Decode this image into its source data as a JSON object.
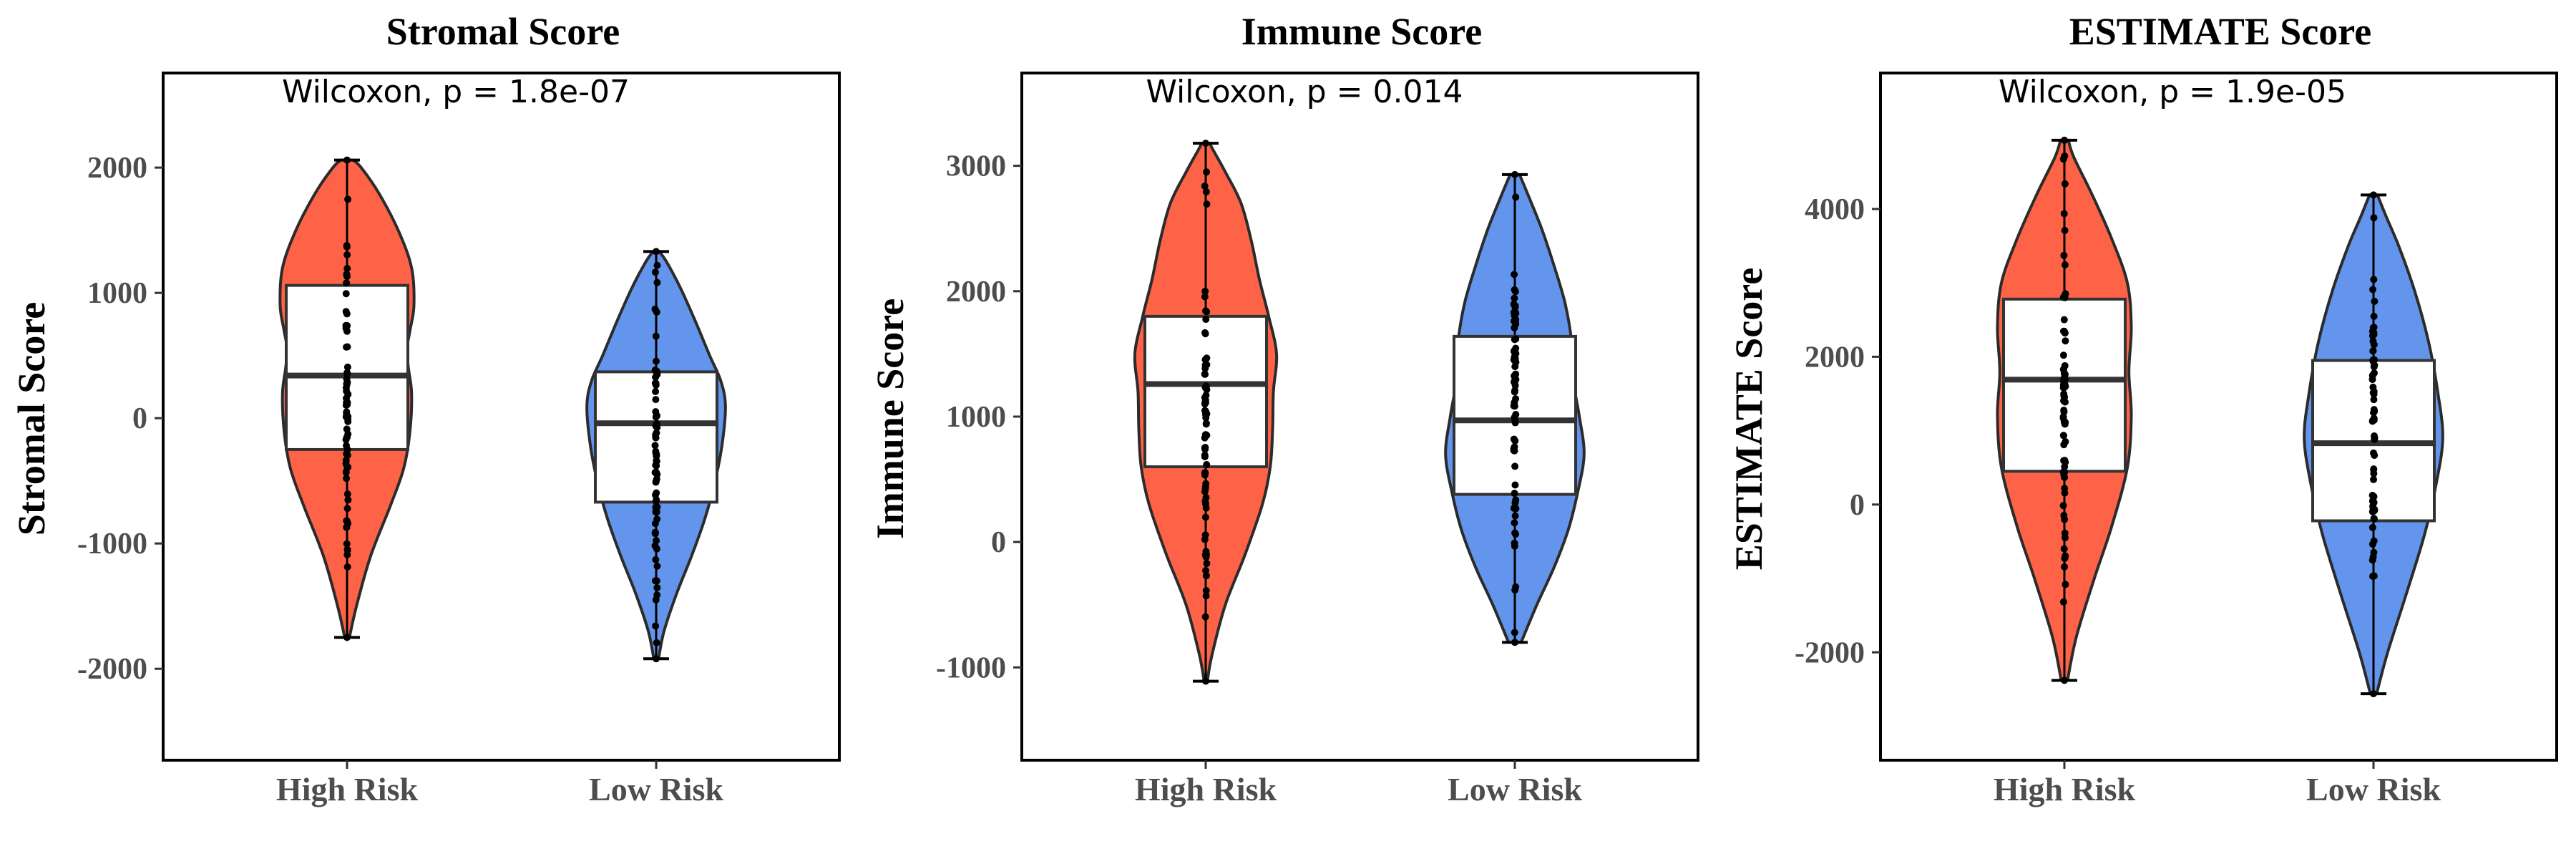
{
  "chart_data": [
    {
      "type": "violin",
      "title": "Stromal Score",
      "ylabel": "Stromal Score",
      "xlabel": "",
      "categories": [
        "High Risk",
        "Low Risk"
      ],
      "yticks": [
        "2000",
        "1000",
        "0",
        "-1000",
        "-2000"
      ],
      "ytick_values": [
        2000,
        1000,
        0,
        -1000,
        -2000
      ],
      "ylim": [
        -2730,
        2755
      ],
      "annotation": "Wilcoxon, p = 1.8e-07",
      "grid": false,
      "legend": "none",
      "groups": [
        {
          "name": "High Risk",
          "color": "#ff6347",
          "box": {
            "min": -1750,
            "q1": -250,
            "median": 340,
            "q3": 1060,
            "max": 2060
          },
          "violin": [
            [
              -1750,
              0.03
            ],
            [
              -1500,
              0.12
            ],
            [
              -1100,
              0.3
            ],
            [
              -700,
              0.55
            ],
            [
              -400,
              0.72
            ],
            [
              -100,
              0.8
            ],
            [
              200,
              0.82
            ],
            [
              400,
              0.78
            ],
            [
              550,
              0.76
            ],
            [
              700,
              0.8
            ],
            [
              900,
              0.85
            ],
            [
              1200,
              0.82
            ],
            [
              1500,
              0.65
            ],
            [
              1800,
              0.4
            ],
            [
              2000,
              0.18
            ],
            [
              2060,
              0.08
            ]
          ]
        },
        {
          "name": "Low Risk",
          "color": "#6495ed",
          "box": {
            "min": -1920,
            "q1": -670,
            "median": -40,
            "q3": 370,
            "max": 1330
          },
          "violin": [
            [
              -1920,
              0.03
            ],
            [
              -1700,
              0.1
            ],
            [
              -1400,
              0.26
            ],
            [
              -1100,
              0.45
            ],
            [
              -800,
              0.62
            ],
            [
              -500,
              0.75
            ],
            [
              -200,
              0.84
            ],
            [
              100,
              0.88
            ],
            [
              300,
              0.82
            ],
            [
              500,
              0.68
            ],
            [
              800,
              0.48
            ],
            [
              1050,
              0.3
            ],
            [
              1250,
              0.13
            ],
            [
              1330,
              0.04
            ]
          ]
        }
      ]
    },
    {
      "type": "violin",
      "title": "Immune Score",
      "ylabel": "Immune Score",
      "xlabel": "",
      "categories": [
        "High Risk",
        "Low Risk"
      ],
      "yticks": [
        "3000",
        "2000",
        "1000",
        "0",
        "-1000"
      ],
      "ytick_values": [
        3000,
        2000,
        1000,
        0,
        -1000
      ],
      "ylim": [
        -1740,
        3740
      ],
      "annotation": "Wilcoxon, p = 0.014",
      "grid": false,
      "legend": "none",
      "groups": [
        {
          "name": "High Risk",
          "color": "#ff6347",
          "box": {
            "min": -1110,
            "q1": 600,
            "median": 1260,
            "q3": 1800,
            "max": 3180
          },
          "violin": [
            [
              -1110,
              0.02
            ],
            [
              -900,
              0.08
            ],
            [
              -500,
              0.25
            ],
            [
              -100,
              0.5
            ],
            [
              300,
              0.72
            ],
            [
              600,
              0.82
            ],
            [
              900,
              0.85
            ],
            [
              1200,
              0.86
            ],
            [
              1500,
              0.9
            ],
            [
              1800,
              0.8
            ],
            [
              2100,
              0.68
            ],
            [
              2400,
              0.58
            ],
            [
              2700,
              0.45
            ],
            [
              2950,
              0.25
            ],
            [
              3120,
              0.1
            ],
            [
              3180,
              0.05
            ]
          ]
        },
        {
          "name": "Low Risk",
          "color": "#6495ed",
          "box": {
            "min": -800,
            "q1": 380,
            "median": 970,
            "q3": 1640,
            "max": 2930
          },
          "violin": [
            [
              -800,
              0.08
            ],
            [
              -500,
              0.28
            ],
            [
              -200,
              0.5
            ],
            [
              100,
              0.68
            ],
            [
              400,
              0.8
            ],
            [
              700,
              0.88
            ],
            [
              1000,
              0.82
            ],
            [
              1300,
              0.74
            ],
            [
              1600,
              0.72
            ],
            [
              1900,
              0.64
            ],
            [
              2200,
              0.5
            ],
            [
              2500,
              0.34
            ],
            [
              2750,
              0.18
            ],
            [
              2930,
              0.06
            ]
          ]
        }
      ]
    },
    {
      "type": "violin",
      "title": "ESTIMATE Score",
      "ylabel": "ESTIMATE Score",
      "xlabel": "",
      "categories": [
        "High Risk",
        "Low Risk"
      ],
      "yticks": [
        "4000",
        "2000",
        "0",
        "-2000"
      ],
      "ytick_values": [
        4000,
        2000,
        0,
        -2000
      ],
      "ylim": [
        -3460,
        5840
      ],
      "annotation": "Wilcoxon, p = 1.9e-05",
      "grid": false,
      "legend": "none",
      "groups": [
        {
          "name": "High Risk",
          "color": "#ff6347",
          "box": {
            "min": -2380,
            "q1": 450,
            "median": 1690,
            "q3": 2780,
            "max": 4930
          },
          "violin": [
            [
              -2380,
              0.04
            ],
            [
              -1800,
              0.15
            ],
            [
              -1000,
              0.38
            ],
            [
              -300,
              0.6
            ],
            [
              500,
              0.8
            ],
            [
              1200,
              0.85
            ],
            [
              1800,
              0.82
            ],
            [
              2400,
              0.85
            ],
            [
              3000,
              0.8
            ],
            [
              3600,
              0.6
            ],
            [
              4200,
              0.35
            ],
            [
              4700,
              0.12
            ],
            [
              4930,
              0.05
            ]
          ]
        },
        {
          "name": "Low Risk",
          "color": "#6495ed",
          "box": {
            "min": -2560,
            "q1": -220,
            "median": 830,
            "q3": 1950,
            "max": 4190
          },
          "violin": [
            [
              -2560,
              0.04
            ],
            [
              -2000,
              0.18
            ],
            [
              -1200,
              0.42
            ],
            [
              -400,
              0.65
            ],
            [
              300,
              0.8
            ],
            [
              900,
              0.88
            ],
            [
              1500,
              0.82
            ],
            [
              2200,
              0.7
            ],
            [
              2900,
              0.52
            ],
            [
              3500,
              0.32
            ],
            [
              3900,
              0.16
            ],
            [
              4190,
              0.05
            ]
          ]
        }
      ]
    }
  ]
}
